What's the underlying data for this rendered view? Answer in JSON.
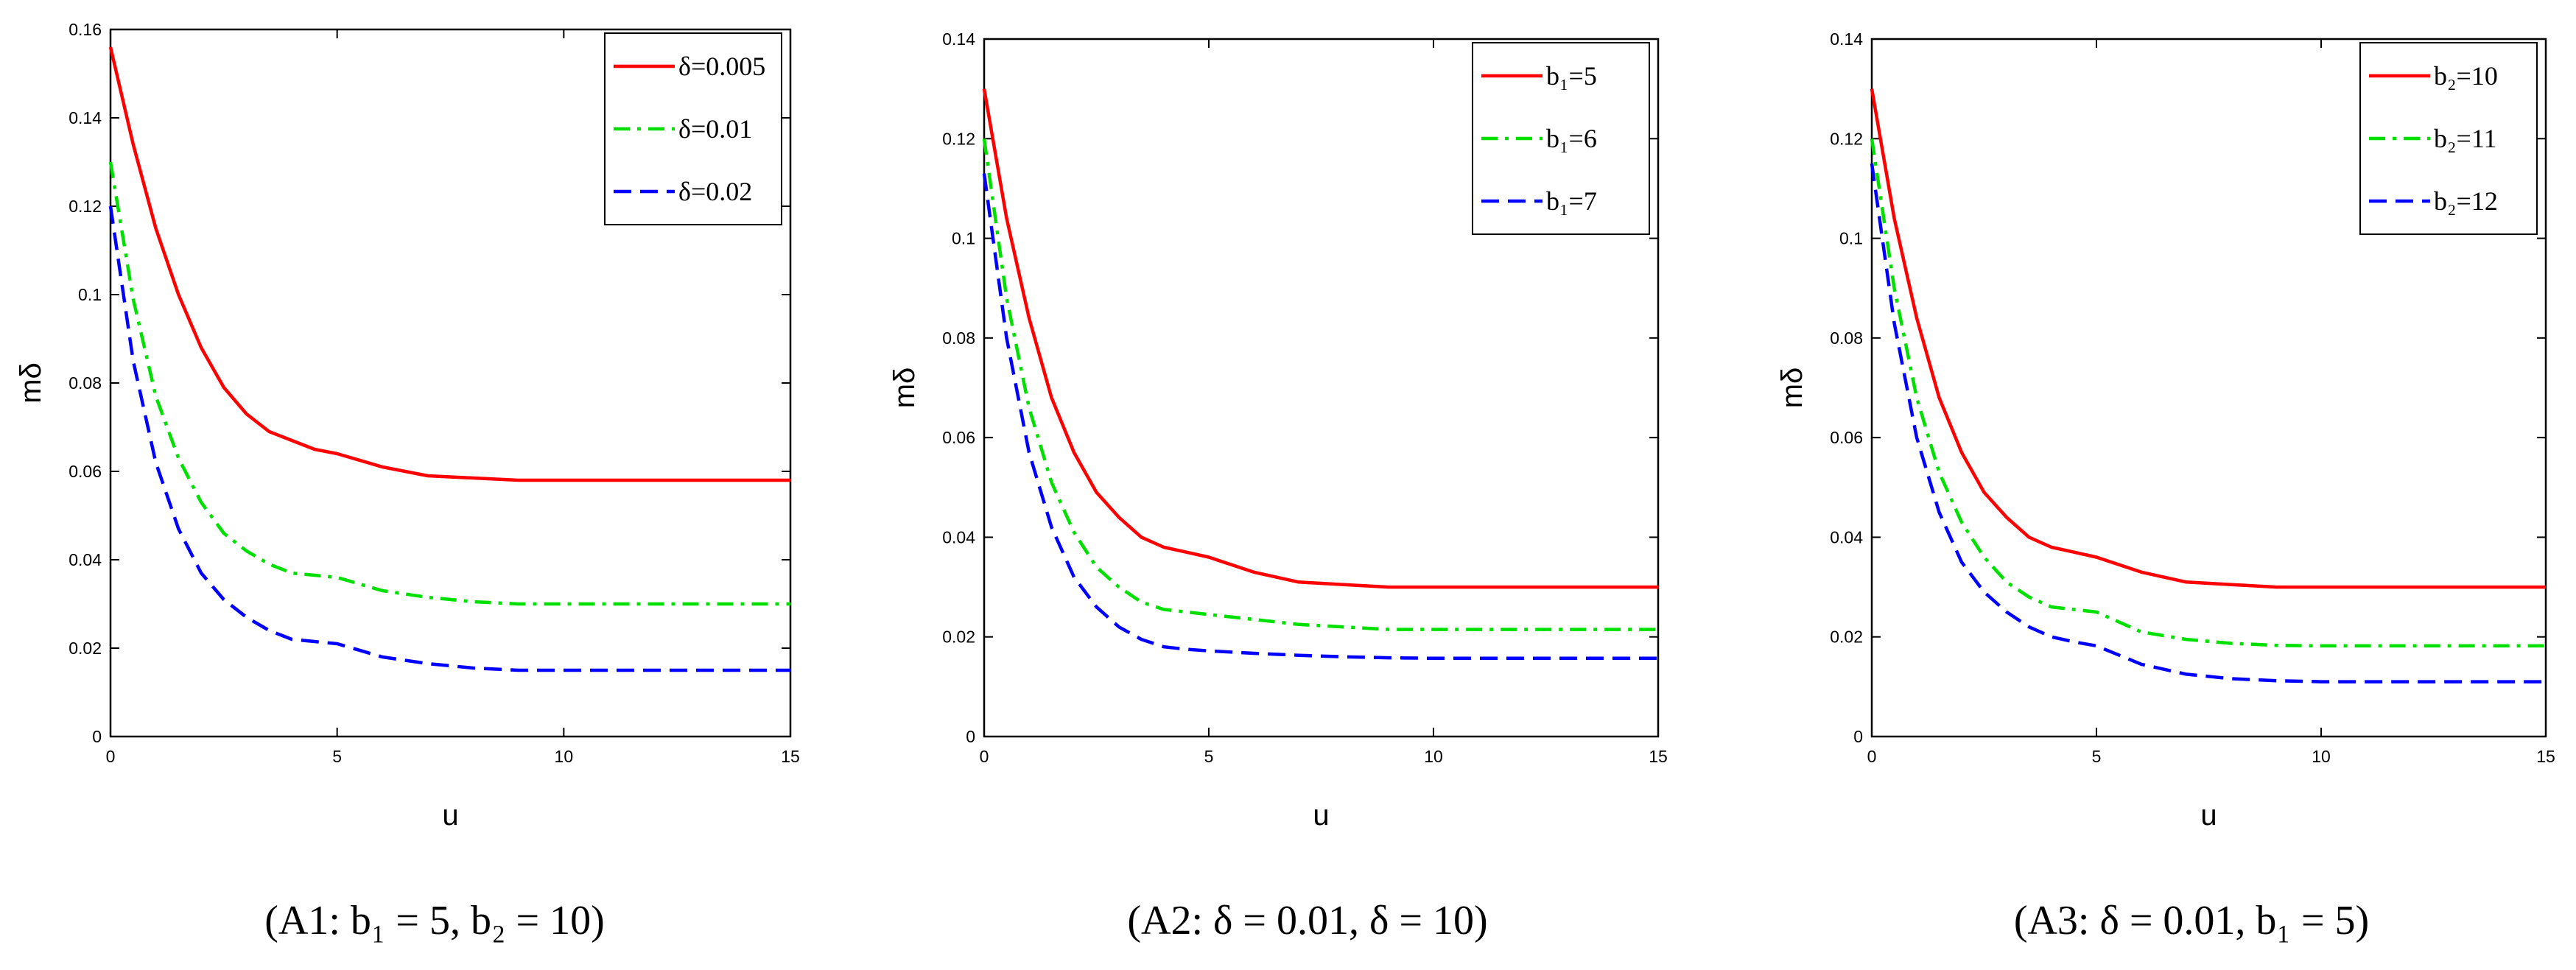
{
  "chart_data": [
    {
      "type": "line",
      "panel": "A1",
      "caption": "(A1: b₁ = 5, b₂ = 10)",
      "xlabel": "u",
      "ylabel": "mδ",
      "xlim": [
        0,
        15
      ],
      "ylim": [
        0,
        0.16
      ],
      "xticks": [
        "0",
        "5",
        "10",
        "15"
      ],
      "yticks": [
        "0",
        "0.02",
        "0.04",
        "0.06",
        "0.08",
        "0.1",
        "0.12",
        "0.14",
        "0.16"
      ],
      "legend_position": "top-right",
      "x": [
        0,
        0.5,
        1,
        1.5,
        2,
        2.5,
        3,
        3.5,
        4,
        4.5,
        5,
        6,
        7,
        8,
        9,
        10,
        11,
        12,
        13,
        14,
        15
      ],
      "series": [
        {
          "name": "δ=0.005",
          "color": "#ff0000",
          "dash": "solid",
          "values": [
            0.156,
            0.134,
            0.115,
            0.1,
            0.088,
            0.079,
            0.073,
            0.069,
            0.067,
            0.065,
            0.064,
            0.061,
            0.059,
            0.0585,
            0.058,
            0.058,
            0.058,
            0.058,
            0.058,
            0.058,
            0.058
          ]
        },
        {
          "name": "δ=0.01",
          "color": "#00e000",
          "dash": "dashdot",
          "values": [
            0.13,
            0.099,
            0.077,
            0.063,
            0.053,
            0.046,
            0.042,
            0.039,
            0.037,
            0.0365,
            0.036,
            0.033,
            0.0315,
            0.0305,
            0.03,
            0.03,
            0.03,
            0.03,
            0.03,
            0.03,
            0.03
          ]
        },
        {
          "name": "δ=0.02",
          "color": "#0000ff",
          "dash": "dashed",
          "values": [
            0.12,
            0.085,
            0.062,
            0.047,
            0.037,
            0.031,
            0.027,
            0.024,
            0.022,
            0.0215,
            0.021,
            0.018,
            0.0165,
            0.0155,
            0.015,
            0.015,
            0.015,
            0.015,
            0.015,
            0.015,
            0.015
          ]
        }
      ]
    },
    {
      "type": "line",
      "panel": "A2",
      "caption": "(A2: δ = 0.01, δ = 10)",
      "xlabel": "u",
      "ylabel": "mδ",
      "xlim": [
        0,
        15
      ],
      "ylim": [
        0,
        0.14
      ],
      "xticks": [
        "0",
        "5",
        "10",
        "15"
      ],
      "yticks": [
        "0",
        "0.02",
        "0.04",
        "0.06",
        "0.08",
        "0.1",
        "0.12",
        "0.14"
      ],
      "legend_position": "top-right",
      "x": [
        0,
        0.5,
        1,
        1.5,
        2,
        2.5,
        3,
        3.5,
        4,
        4.5,
        5,
        6,
        7,
        8,
        9,
        10,
        11,
        12,
        13,
        14,
        15
      ],
      "series": [
        {
          "name": "b₁=5",
          "color": "#ff0000",
          "dash": "solid",
          "values": [
            0.13,
            0.104,
            0.084,
            0.068,
            0.057,
            0.049,
            0.044,
            0.04,
            0.038,
            0.037,
            0.036,
            0.033,
            0.031,
            0.0305,
            0.03,
            0.03,
            0.03,
            0.03,
            0.03,
            0.03,
            0.03
          ]
        },
        {
          "name": "b₁=6",
          "color": "#00e000",
          "dash": "dashdot",
          "values": [
            0.12,
            0.088,
            0.066,
            0.051,
            0.041,
            0.034,
            0.03,
            0.027,
            0.0255,
            0.025,
            0.0245,
            0.0235,
            0.0225,
            0.022,
            0.0215,
            0.0215,
            0.0215,
            0.0215,
            0.0215,
            0.0215,
            0.0215
          ]
        },
        {
          "name": "b₁=7",
          "color": "#0000ff",
          "dash": "dashed",
          "values": [
            0.113,
            0.08,
            0.057,
            0.042,
            0.032,
            0.026,
            0.022,
            0.0195,
            0.018,
            0.0175,
            0.0172,
            0.0167,
            0.0163,
            0.016,
            0.0158,
            0.0157,
            0.0157,
            0.0157,
            0.0157,
            0.0157,
            0.0157
          ]
        }
      ]
    },
    {
      "type": "line",
      "panel": "A3",
      "caption": "(A3: δ = 0.01, b₁ = 5)",
      "xlabel": "u",
      "ylabel": "mδ",
      "xlim": [
        0,
        15
      ],
      "ylim": [
        0,
        0.14
      ],
      "xticks": [
        "0",
        "5",
        "10",
        "15"
      ],
      "yticks": [
        "0",
        "0.02",
        "0.04",
        "0.06",
        "0.08",
        "0.1",
        "0.12",
        "0.14"
      ],
      "legend_position": "top-right",
      "x": [
        0,
        0.5,
        1,
        1.5,
        2,
        2.5,
        3,
        3.5,
        4,
        4.5,
        5,
        6,
        7,
        8,
        9,
        10,
        11,
        12,
        13,
        14,
        15
      ],
      "series": [
        {
          "name": "b₂=10",
          "color": "#ff0000",
          "dash": "solid",
          "values": [
            0.13,
            0.104,
            0.084,
            0.068,
            0.057,
            0.049,
            0.044,
            0.04,
            0.038,
            0.037,
            0.036,
            0.033,
            0.031,
            0.0305,
            0.03,
            0.03,
            0.03,
            0.03,
            0.03,
            0.03,
            0.03
          ]
        },
        {
          "name": "b₂=11",
          "color": "#00e000",
          "dash": "dashdot",
          "values": [
            0.12,
            0.09,
            0.068,
            0.053,
            0.043,
            0.036,
            0.031,
            0.028,
            0.026,
            0.0255,
            0.025,
            0.021,
            0.0195,
            0.0187,
            0.0183,
            0.0182,
            0.0182,
            0.0182,
            0.0182,
            0.0182,
            0.0182
          ]
        },
        {
          "name": "b₂=12",
          "color": "#0000ff",
          "dash": "dashed",
          "values": [
            0.115,
            0.083,
            0.06,
            0.045,
            0.035,
            0.029,
            0.025,
            0.022,
            0.02,
            0.019,
            0.0182,
            0.0145,
            0.0125,
            0.0116,
            0.0112,
            0.011,
            0.011,
            0.011,
            0.011,
            0.011,
            0.011
          ]
        }
      ]
    }
  ]
}
